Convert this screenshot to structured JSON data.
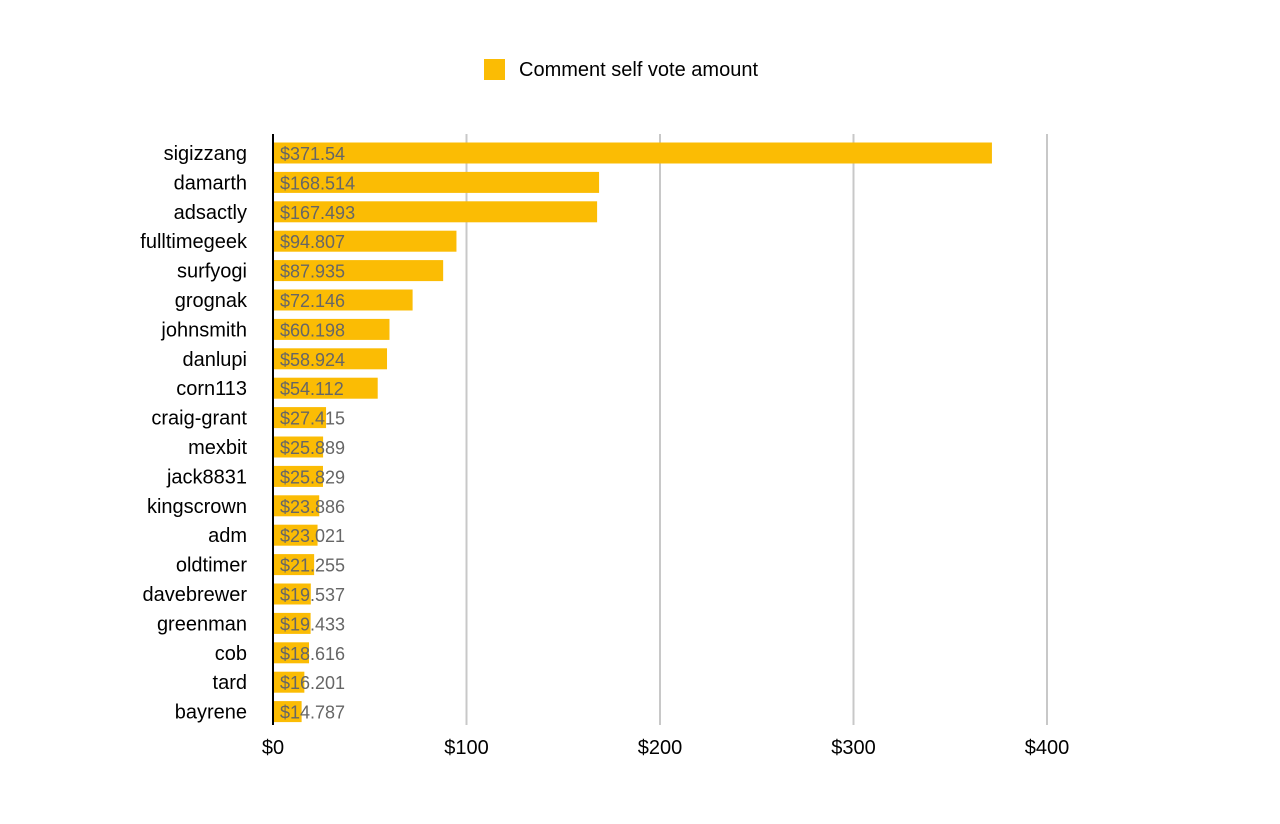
{
  "chart_data": {
    "type": "bar",
    "orientation": "horizontal",
    "legend": {
      "position": "top",
      "entries": [
        "Comment self vote amount"
      ]
    },
    "categories": [
      "sigizzang",
      "damarth",
      "adsactly",
      "fulltimegeek",
      "surfyogi",
      "grognak",
      "johnsmith",
      "danlupi",
      "corn113",
      "craig-grant",
      "mexbit",
      "jack8831",
      "kingscrown",
      "adm",
      "oldtimer",
      "davebrewer",
      "greenman",
      "cob",
      "tard",
      "bayrene"
    ],
    "series": [
      {
        "name": "Comment self vote amount",
        "color": "#FBBC04",
        "values": [
          371.54,
          168.514,
          167.493,
          94.807,
          87.935,
          72.146,
          60.198,
          58.924,
          54.112,
          27.415,
          25.889,
          25.829,
          23.886,
          23.021,
          21.255,
          19.537,
          19.433,
          18.616,
          16.201,
          14.787
        ],
        "data_labels": [
          "$371.54",
          "$168.514",
          "$167.493",
          "$94.807",
          "$87.935",
          "$72.146",
          "$60.198",
          "$58.924",
          "$54.112",
          "$27.415",
          "$25.889",
          "$25.829",
          "$23.886",
          "$23.021",
          "$21.255",
          "$19.537",
          "$19.433",
          "$18.616",
          "$16.201",
          "$14.787"
        ]
      }
    ],
    "x_axis": {
      "ticks": [
        0,
        100,
        200,
        300,
        400
      ],
      "tick_labels": [
        "$0",
        "$100",
        "$200",
        "$300",
        "$400"
      ],
      "range": [
        0,
        400
      ]
    },
    "grid": true,
    "colors": {
      "bar": "#FBBC04",
      "grid": "#C8C8C8",
      "axis": "#000000",
      "data_label": "#666666"
    }
  }
}
